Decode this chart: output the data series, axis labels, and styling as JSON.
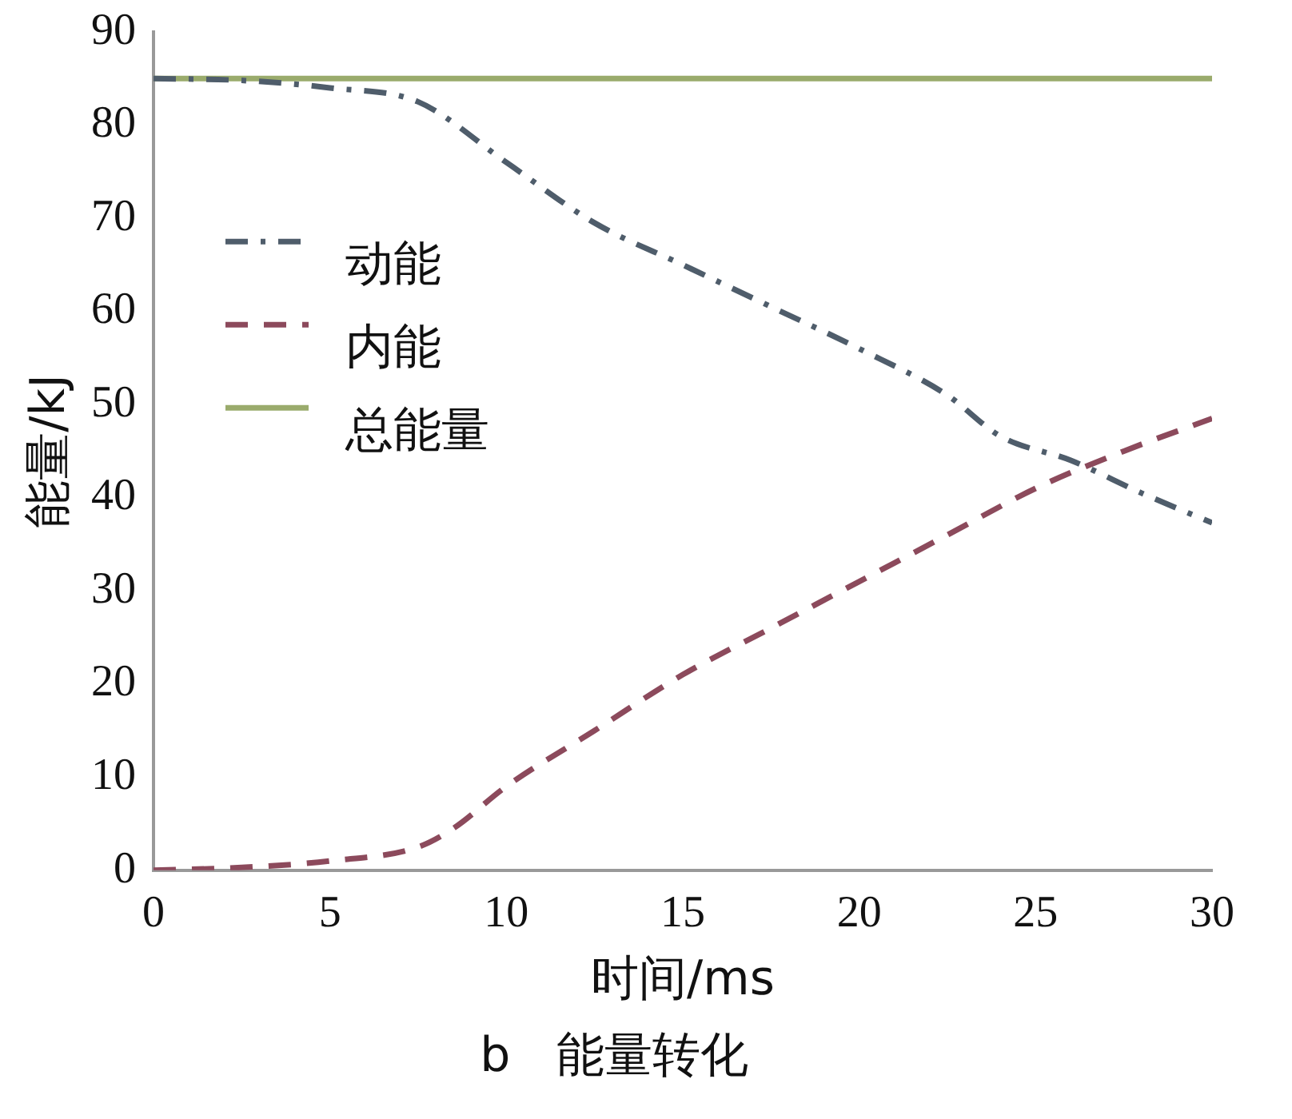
{
  "chart_data": {
    "type": "line",
    "title": "b   能量转化",
    "xlabel": "时间/ms",
    "ylabel": "能量/kJ",
    "xlim": [
      0,
      30
    ],
    "xticks": [
      0,
      5,
      10,
      15,
      20,
      25,
      30
    ],
    "ylim": [
      0,
      90
    ],
    "yticks": [
      0,
      10,
      20,
      30,
      40,
      50,
      60,
      70,
      80,
      90
    ],
    "grid": false,
    "legend": "left",
    "marker": "none",
    "series": [
      {
        "name": "动能",
        "color": "#4f5d6b",
        "line_style": "dashdot",
        "x": [
          0,
          2.5,
          5,
          7.5,
          10,
          12.5,
          15,
          17.5,
          20,
          22.5,
          24,
          26,
          28,
          30
        ],
        "values": [
          85,
          84.8,
          84,
          82.5,
          76,
          69.5,
          65,
          60.5,
          56,
          51,
          46.6,
          44,
          40.5,
          37.3
        ]
      },
      {
        "name": "内能",
        "color": "#8c4a5c",
        "line_style": "dashed",
        "x": [
          0,
          2.5,
          5,
          7.5,
          8.5,
          10,
          12.5,
          15,
          17.5,
          20,
          22.5,
          25,
          27.5,
          30
        ],
        "values": [
          0,
          0.3,
          1,
          2.5,
          4.5,
          9,
          15,
          21,
          26,
          31,
          36,
          41,
          45,
          48.5
        ]
      },
      {
        "name": "总能量",
        "color": "#9aab6c",
        "line_style": "solid",
        "x": [
          0,
          30
        ],
        "values": [
          85,
          85
        ]
      }
    ]
  }
}
